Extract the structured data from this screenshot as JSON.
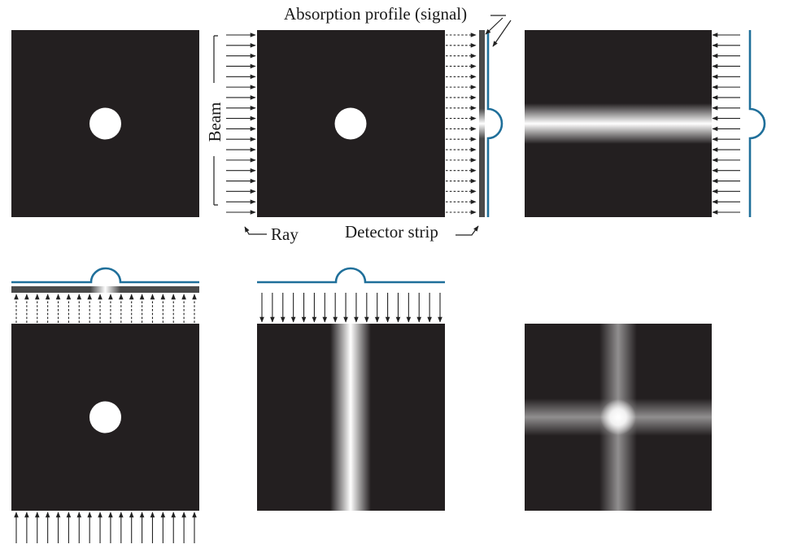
{
  "labels": {
    "absorption": "Absorption profile (signal)",
    "beam": "Beam",
    "ray": "Ray",
    "detector": "Detector strip"
  },
  "colors": {
    "background": "#231f20",
    "object": "#ffffff",
    "profile": "#1f6f9a",
    "detector": "#4a4a4a",
    "arrow": "#222222"
  },
  "panels": [
    {
      "name": "object"
    },
    {
      "name": "horizontal-projection"
    },
    {
      "name": "horizontal-backprojection"
    },
    {
      "name": "vertical-projection"
    },
    {
      "name": "vertical-backprojection"
    },
    {
      "name": "summed-backprojection"
    }
  ]
}
